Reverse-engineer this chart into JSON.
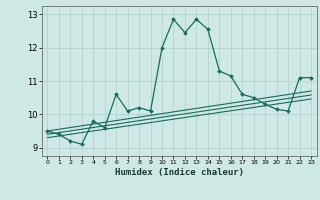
{
  "title": "",
  "xlabel": "Humidex (Indice chaleur)",
  "bg_color": "#cde8e5",
  "grid_color": "#b0d0cc",
  "line_color": "#1a6b5a",
  "xlim": [
    -0.5,
    23.5
  ],
  "ylim": [
    8.75,
    13.25
  ],
  "yticks": [
    9,
    10,
    11,
    12,
    13
  ],
  "xtick_vals": [
    0,
    1,
    2,
    3,
    4,
    5,
    6,
    7,
    8,
    9,
    10,
    11,
    12,
    13,
    14,
    15,
    16,
    17,
    18,
    19,
    20,
    21,
    22,
    23
  ],
  "xtick_labels": [
    "0",
    "1",
    "2",
    "3",
    "4",
    "5",
    "6",
    "7",
    "8",
    "9",
    "10",
    "11",
    "12",
    "13",
    "14",
    "15",
    "16",
    "17",
    "18",
    "19",
    "20",
    "21",
    "22",
    "23"
  ],
  "main_x": [
    0,
    1,
    2,
    3,
    4,
    5,
    6,
    7,
    8,
    9,
    10,
    11,
    12,
    13,
    14,
    15,
    16,
    17,
    18,
    19,
    20,
    21,
    22,
    23
  ],
  "main_y": [
    9.5,
    9.4,
    9.2,
    9.1,
    9.8,
    9.6,
    10.6,
    10.1,
    10.2,
    10.1,
    12.0,
    12.85,
    12.45,
    12.85,
    12.55,
    11.3,
    11.15,
    10.6,
    10.5,
    10.3,
    10.15,
    10.1,
    11.1,
    11.1
  ],
  "reg_lines": [
    {
      "x": [
        0,
        23
      ],
      "y": [
        9.5,
        10.7
      ]
    },
    {
      "x": [
        0,
        23
      ],
      "y": [
        9.4,
        10.58
      ]
    },
    {
      "x": [
        0,
        23
      ],
      "y": [
        9.3,
        10.46
      ]
    }
  ]
}
